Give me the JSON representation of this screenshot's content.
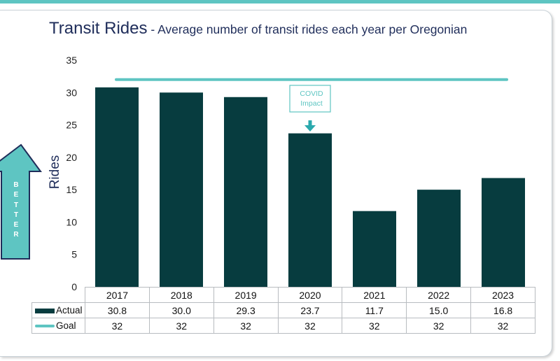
{
  "title": "Transit Rides",
  "subtitle": " - Average number of transit rides each year per Oregonian",
  "better_label": [
    "B",
    "E",
    "T",
    "T",
    "E",
    "R"
  ],
  "annotation": {
    "line1": "COVID",
    "line2": "Impact",
    "category": "2020"
  },
  "colors": {
    "actual": "#073c3f",
    "goal": "#5ec5c2",
    "accent": "#5ec5c2"
  },
  "chart_data": {
    "type": "bar",
    "title": "Transit Rides",
    "subtitle": "Average number of transit rides each year per Oregonian",
    "ylabel": "Rides",
    "xlabel": "",
    "ylim": [
      0,
      35
    ],
    "yticks": [
      0,
      5,
      10,
      15,
      20,
      25,
      30,
      35
    ],
    "grid": false,
    "categories": [
      "2017",
      "2018",
      "2019",
      "2020",
      "2021",
      "2022",
      "2023"
    ],
    "series": [
      {
        "name": "Actual",
        "type": "bar",
        "values": [
          30.8,
          30.0,
          29.3,
          23.7,
          11.7,
          15.0,
          16.8
        ],
        "labels": [
          "30.8",
          "30.0",
          "29.3",
          "23.7",
          "11.7",
          "15.0",
          "16.8"
        ]
      },
      {
        "name": "Goal",
        "type": "line",
        "values": [
          32,
          32,
          32,
          32,
          32,
          32,
          32
        ],
        "labels": [
          "32",
          "32",
          "32",
          "32",
          "32",
          "32",
          "32"
        ]
      }
    ]
  }
}
